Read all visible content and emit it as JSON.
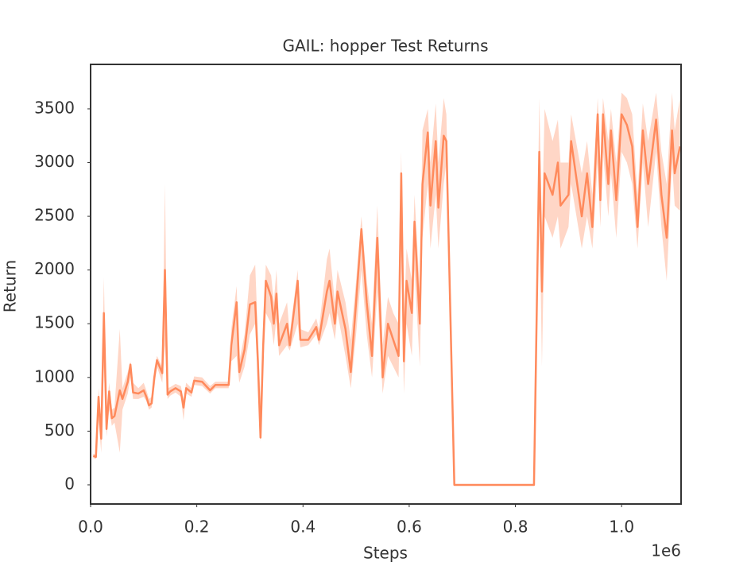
{
  "chart_data": {
    "type": "line",
    "title": "GAIL: hopper Test Returns",
    "xlabel": "Steps",
    "ylabel": "Return",
    "x_offset_label": "1e6",
    "xlim": [
      0,
      1.112
    ],
    "ylim": [
      -178,
      3914
    ],
    "xticks": [
      {
        "value": 0,
        "label": "0.0"
      },
      0.2,
      0.4,
      0.6,
      0.8,
      {
        "value": 1,
        "label": "1.0"
      }
    ],
    "yticks": [
      0,
      500,
      1000,
      1500,
      2000,
      2500,
      3000,
      3500
    ],
    "x": [
      0.005,
      0.01,
      0.015,
      0.02,
      0.025,
      0.03,
      0.035,
      0.04,
      0.045,
      0.055,
      0.06,
      0.07,
      0.075,
      0.08,
      0.09,
      0.1,
      0.105,
      0.11,
      0.115,
      0.12,
      0.125,
      0.135,
      0.14,
      0.145,
      0.15,
      0.16,
      0.17,
      0.175,
      0.18,
      0.19,
      0.195,
      0.21,
      0.225,
      0.235,
      0.26,
      0.265,
      0.275,
      0.28,
      0.29,
      0.3,
      0.31,
      0.315,
      0.32,
      0.325,
      0.33,
      0.34,
      0.345,
      0.35,
      0.355,
      0.37,
      0.375,
      0.39,
      0.395,
      0.41,
      0.425,
      0.43,
      0.445,
      0.45,
      0.46,
      0.465,
      0.48,
      0.49,
      0.5,
      0.51,
      0.52,
      0.53,
      0.54,
      0.55,
      0.56,
      0.57,
      0.58,
      0.585,
      0.59,
      0.595,
      0.605,
      0.61,
      0.62,
      0.625,
      0.635,
      0.64,
      0.65,
      0.655,
      0.665,
      0.67,
      0.685,
      0.835,
      0.845,
      0.85,
      0.855,
      0.87,
      0.88,
      0.885,
      0.9,
      0.905,
      0.925,
      0.935,
      0.945,
      0.955,
      0.96,
      0.965,
      0.975,
      0.98,
      0.99,
      1.0,
      1.01,
      1.02,
      1.03,
      1.04,
      1.05,
      1.065,
      1.075,
      1.085,
      1.095,
      1.1,
      1.11
    ],
    "series": [
      {
        "color": "#ff8a5c",
        "values": [
          270,
          260,
          820,
          430,
          1600,
          520,
          870,
          620,
          640,
          880,
          800,
          960,
          1120,
          860,
          850,
          880,
          820,
          740,
          760,
          1000,
          1160,
          1040,
          2000,
          840,
          870,
          900,
          870,
          720,
          900,
          860,
          970,
          960,
          880,
          930,
          930,
          1300,
          1700,
          1050,
          1260,
          1680,
          1700,
          1150,
          440,
          1290,
          1900,
          1750,
          1500,
          1780,
          1300,
          1500,
          1300,
          1900,
          1350,
          1350,
          1470,
          1350,
          1800,
          1900,
          1500,
          1800,
          1450,
          1050,
          1700,
          2380,
          1700,
          1200,
          2300,
          1000,
          1500,
          1350,
          1200,
          2900,
          1150,
          1900,
          1600,
          2450,
          1500,
          2800,
          3280,
          2600,
          3200,
          2580,
          3250,
          3200,
          0,
          0,
          3100,
          1800,
          2900,
          2700,
          3000,
          2600,
          2700,
          3200,
          2500,
          2900,
          2400,
          3450,
          2650,
          3450,
          2800,
          3300,
          2650,
          3450,
          3350,
          3150,
          2400,
          3300,
          2800,
          3400,
          2700,
          2300,
          3300,
          2900,
          3150
        ],
        "lower": [
          250,
          240,
          600,
          300,
          1100,
          450,
          700,
          550,
          580,
          300,
          700,
          850,
          1000,
          800,
          800,
          820,
          780,
          700,
          720,
          900,
          1100,
          950,
          1300,
          800,
          830,
          860,
          820,
          600,
          850,
          820,
          930,
          920,
          850,
          900,
          900,
          1150,
          1200,
          950,
          1100,
          1400,
          1500,
          1000,
          400,
          1100,
          1600,
          1500,
          1300,
          1550,
          1200,
          1300,
          1250,
          1500,
          1280,
          1300,
          1400,
          1300,
          1500,
          1600,
          1350,
          1600,
          1200,
          900,
          1400,
          2000,
          1400,
          1000,
          1800,
          850,
          1200,
          1100,
          1000,
          2200,
          850,
          1500,
          1200,
          2000,
          1100,
          2300,
          2800,
          2200,
          2700,
          2200,
          2800,
          3000,
          0,
          0,
          2700,
          1100,
          2500,
          2300,
          2500,
          2200,
          2400,
          2800,
          2200,
          2500,
          2200,
          3000,
          2400,
          3100,
          2500,
          2900,
          2300,
          3100,
          3000,
          2800,
          2200,
          3000,
          2400,
          3100,
          2400,
          1900,
          3000,
          2600,
          2550
        ],
        "upper": [
          290,
          280,
          900,
          600,
          1930,
          700,
          950,
          700,
          720,
          1450,
          900,
          1050,
          1150,
          950,
          900,
          950,
          880,
          800,
          820,
          1080,
          1200,
          1100,
          2800,
          900,
          910,
          940,
          920,
          800,
          950,
          900,
          1010,
          1000,
          920,
          960,
          960,
          1450,
          1850,
          1150,
          1400,
          1950,
          2050,
          1400,
          800,
          1500,
          2050,
          1950,
          1700,
          2000,
          1500,
          1700,
          1400,
          2000,
          1450,
          1420,
          1550,
          1450,
          2100,
          2200,
          1700,
          2000,
          1700,
          1350,
          1900,
          2500,
          1900,
          1500,
          2600,
          1300,
          1750,
          1600,
          1500,
          3100,
          1500,
          2200,
          1900,
          2700,
          1800,
          3300,
          3500,
          3000,
          3550,
          3000,
          3600,
          3450,
          0,
          0,
          3600,
          2400,
          3500,
          3200,
          3400,
          3000,
          3000,
          3450,
          2900,
          3200,
          2700,
          3600,
          3000,
          3600,
          3200,
          3500,
          3000,
          3650,
          3600,
          3450,
          2700,
          3550,
          3200,
          3650,
          3100,
          2800,
          3650,
          3300,
          3600
        ]
      }
    ]
  }
}
